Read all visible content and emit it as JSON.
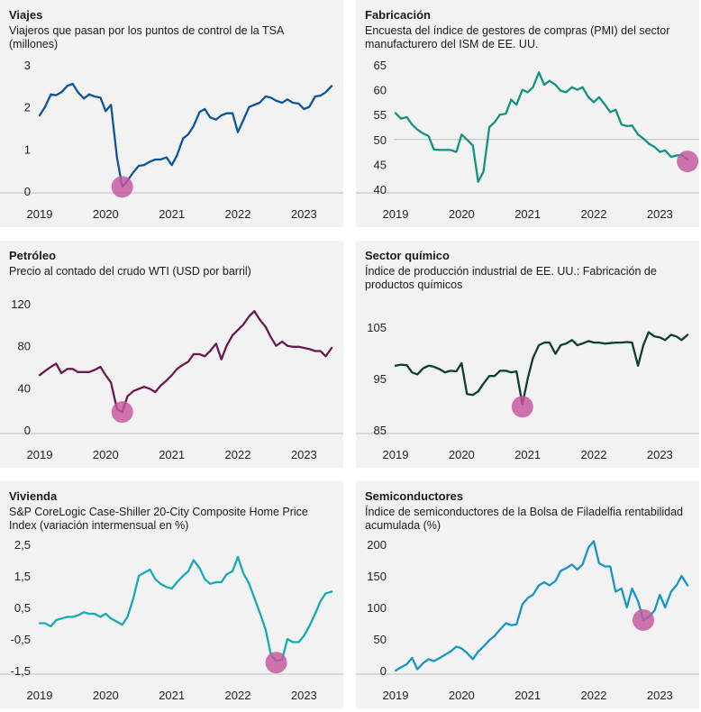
{
  "chart_data": [
    {
      "type": "line",
      "title": "Viajes",
      "subtitle": "Viajeros que pasan por los puntos de control de la TSA (millones)",
      "color": "#0e5596",
      "ylim": [
        0,
        3
      ],
      "yticks": [
        "0",
        "1",
        "2",
        "3"
      ],
      "ytick_values": [
        0,
        1,
        2,
        3
      ],
      "xlim": [
        2019.0,
        2023.5
      ],
      "xticks": [
        "2019",
        "2020",
        "2021",
        "2022",
        "2023"
      ],
      "x": [
        2019.0,
        2019.08,
        2019.17,
        2019.25,
        2019.33,
        2019.42,
        2019.5,
        2019.58,
        2019.67,
        2019.75,
        2019.83,
        2019.92,
        2020.0,
        2020.08,
        2020.17,
        2020.25,
        2020.33,
        2020.42,
        2020.5,
        2020.58,
        2020.67,
        2020.75,
        2020.83,
        2020.92,
        2021.0,
        2021.08,
        2021.17,
        2021.25,
        2021.33,
        2021.42,
        2021.5,
        2021.58,
        2021.67,
        2021.75,
        2021.83,
        2021.92,
        2022.0,
        2022.08,
        2022.17,
        2022.25,
        2022.33,
        2022.42,
        2022.5,
        2022.58,
        2022.67,
        2022.75,
        2022.83,
        2022.92,
        2023.0,
        2023.08,
        2023.17,
        2023.25,
        2023.33,
        2023.42
      ],
      "values": [
        1.8,
        2.0,
        2.3,
        2.28,
        2.35,
        2.5,
        2.55,
        2.35,
        2.2,
        2.3,
        2.25,
        2.22,
        1.9,
        2.05,
        0.8,
        0.1,
        0.25,
        0.45,
        0.6,
        0.62,
        0.7,
        0.75,
        0.75,
        0.8,
        0.62,
        0.85,
        1.25,
        1.35,
        1.55,
        1.88,
        1.95,
        1.75,
        1.7,
        1.8,
        1.85,
        1.85,
        1.4,
        1.68,
        2.0,
        2.05,
        2.1,
        2.25,
        2.22,
        2.15,
        2.1,
        2.18,
        2.1,
        2.08,
        1.95,
        2.0,
        2.25,
        2.27,
        2.35,
        2.5
      ],
      "highlight": {
        "x": 2020.25,
        "y": 0.1
      },
      "grid": false
    },
    {
      "type": "line",
      "title": "Fabricación",
      "subtitle": "Encuesta del índice de gestores de compras (PMI) del sector manufacturero del ISM de EE. UU.",
      "color": "#13937f",
      "ylim": [
        40,
        65
      ],
      "yticks": [
        "40",
        "45",
        "50",
        "55",
        "60",
        "65"
      ],
      "ytick_values": [
        40,
        45,
        50,
        55,
        60,
        65
      ],
      "reference_line": 50,
      "xlim": [
        2019.0,
        2023.5
      ],
      "xticks": [
        "2019",
        "2020",
        "2021",
        "2022",
        "2023"
      ],
      "x": [
        2019.0,
        2019.08,
        2019.17,
        2019.25,
        2019.33,
        2019.42,
        2019.5,
        2019.58,
        2019.67,
        2019.75,
        2019.83,
        2019.92,
        2020.0,
        2020.08,
        2020.17,
        2020.25,
        2020.33,
        2020.42,
        2020.5,
        2020.58,
        2020.67,
        2020.75,
        2020.83,
        2020.92,
        2021.0,
        2021.08,
        2021.17,
        2021.25,
        2021.33,
        2021.42,
        2021.5,
        2021.58,
        2021.67,
        2021.75,
        2021.83,
        2021.92,
        2022.0,
        2022.08,
        2022.17,
        2022.25,
        2022.33,
        2022.42,
        2022.5,
        2022.58,
        2022.67,
        2022.75,
        2022.83,
        2022.92,
        2023.0,
        2023.08,
        2023.17,
        2023.25,
        2023.33,
        2023.42
      ],
      "values": [
        55.3,
        54.2,
        54.5,
        53.0,
        52.0,
        51.2,
        50.7,
        48.0,
        47.9,
        47.9,
        47.9,
        47.5,
        51.0,
        50.0,
        48.8,
        41.5,
        43.5,
        52.5,
        53.5,
        55.0,
        55.2,
        58.0,
        57.0,
        60.0,
        59.5,
        60.5,
        63.5,
        61.0,
        61.8,
        61.0,
        59.8,
        59.5,
        60.5,
        60.0,
        60.5,
        58.5,
        57.5,
        58.5,
        57.0,
        55.5,
        56.0,
        53.0,
        52.7,
        52.8,
        51.0,
        50.2,
        49.2,
        48.5,
        47.5,
        47.8,
        46.5,
        46.8,
        46.9,
        46.0
      ],
      "highlight": {
        "x": 2023.42,
        "y": 45.6
      },
      "grid": false
    },
    {
      "type": "line",
      "title": "Petróleo",
      "subtitle": "Precio al contado del crudo WTI (USD por barril)",
      "color": "#6a1b4d",
      "ylim": [
        0,
        120
      ],
      "yticks": [
        "0",
        "40",
        "80",
        "120"
      ],
      "ytick_values": [
        0,
        40,
        80,
        120
      ],
      "xlim": [
        2019.0,
        2023.5
      ],
      "xticks": [
        "2019",
        "2020",
        "2021",
        "2022",
        "2023"
      ],
      "x": [
        2019.0,
        2019.08,
        2019.17,
        2019.25,
        2019.33,
        2019.42,
        2019.5,
        2019.58,
        2019.67,
        2019.75,
        2019.83,
        2019.92,
        2020.0,
        2020.08,
        2020.17,
        2020.25,
        2020.33,
        2020.42,
        2020.5,
        2020.58,
        2020.67,
        2020.75,
        2020.83,
        2020.92,
        2021.0,
        2021.08,
        2021.17,
        2021.25,
        2021.33,
        2021.42,
        2021.5,
        2021.58,
        2021.67,
        2021.75,
        2021.83,
        2021.92,
        2022.0,
        2022.08,
        2022.17,
        2022.25,
        2022.33,
        2022.42,
        2022.5,
        2022.58,
        2022.67,
        2022.75,
        2022.83,
        2022.92,
        2023.0,
        2023.08,
        2023.17,
        2023.25,
        2023.33,
        2023.42
      ],
      "values": [
        52,
        56,
        60,
        63,
        54,
        58,
        58,
        55,
        55,
        55,
        57,
        60,
        52,
        45,
        20,
        17,
        32,
        37,
        39,
        41,
        39,
        36,
        42,
        47,
        52,
        58,
        62,
        65,
        72,
        72,
        70,
        75,
        82,
        67,
        80,
        90,
        95,
        100,
        108,
        113,
        105,
        98,
        88,
        80,
        84,
        80,
        79,
        79,
        78,
        77,
        75,
        75,
        70,
        78
      ],
      "highlight": {
        "x": 2020.25,
        "y": 17
      },
      "grid": false
    },
    {
      "type": "line",
      "title": "Sector químico",
      "subtitle": "Índice de producción industrial de EE. UU.: Fabricación de productos químicos",
      "color": "#0d3d36",
      "ylim": [
        85,
        105
      ],
      "yticks": [
        "85",
        "95",
        "105"
      ],
      "ytick_values": [
        85,
        95,
        105
      ],
      "xlim": [
        2019.0,
        2023.5
      ],
      "xticks": [
        "2019",
        "2020",
        "2021",
        "2022",
        "2023"
      ],
      "x": [
        2019.0,
        2019.08,
        2019.17,
        2019.25,
        2019.33,
        2019.42,
        2019.5,
        2019.58,
        2019.67,
        2019.75,
        2019.83,
        2019.92,
        2020.0,
        2020.08,
        2020.17,
        2020.25,
        2020.33,
        2020.42,
        2020.5,
        2020.58,
        2020.67,
        2020.75,
        2020.83,
        2020.92,
        2021.0,
        2021.08,
        2021.17,
        2021.25,
        2021.33,
        2021.42,
        2021.5,
        2021.58,
        2021.67,
        2021.75,
        2021.83,
        2021.92,
        2022.0,
        2022.08,
        2022.17,
        2022.25,
        2022.33,
        2022.42,
        2022.5,
        2022.58,
        2022.67,
        2022.75,
        2022.83,
        2022.92,
        2023.0,
        2023.08,
        2023.17,
        2023.25,
        2023.33,
        2023.42
      ],
      "values": [
        97.5,
        97.7,
        97.6,
        96.2,
        95.8,
        97.0,
        97.5,
        97.3,
        96.8,
        96.2,
        96.5,
        96.4,
        98.0,
        92.0,
        91.8,
        92.5,
        94.0,
        95.5,
        95.5,
        96.5,
        96.5,
        96.2,
        96.4,
        90.0,
        95.0,
        99.0,
        101.5,
        102.0,
        102.0,
        99.8,
        101.5,
        101.8,
        102.5,
        101.5,
        101.8,
        102.3,
        102.0,
        102.0,
        101.8,
        101.9,
        102.0,
        102.0,
        102.1,
        102.0,
        97.5,
        101.5,
        104.0,
        103.2,
        103.0,
        102.5,
        103.5,
        103.2,
        102.5,
        103.5
      ],
      "highlight": {
        "x": 2020.92,
        "y": 89.5
      },
      "grid": false
    },
    {
      "type": "line",
      "title": "Vivienda",
      "subtitle": "S&P CoreLogic Case-Shiller 20-City Composite Home Price Index (variación intermensual en %)",
      "color": "#18aab0",
      "ylim": [
        -1.5,
        2.5
      ],
      "yticks": [
        "-1,5",
        "-0,5",
        "0,5",
        "1,5",
        "2,5"
      ],
      "ytick_values": [
        -1.5,
        -0.5,
        0.5,
        1.5,
        2.5
      ],
      "xlim": [
        2019.0,
        2023.5
      ],
      "xticks": [
        "2019",
        "2020",
        "2021",
        "2022",
        "2023"
      ],
      "x": [
        2019.0,
        2019.08,
        2019.17,
        2019.25,
        2019.33,
        2019.42,
        2019.5,
        2019.58,
        2019.67,
        2019.75,
        2019.83,
        2019.92,
        2020.0,
        2020.08,
        2020.17,
        2020.25,
        2020.33,
        2020.42,
        2020.5,
        2020.58,
        2020.67,
        2020.75,
        2020.83,
        2020.92,
        2021.0,
        2021.08,
        2021.17,
        2021.25,
        2021.33,
        2021.42,
        2021.5,
        2021.58,
        2021.67,
        2021.75,
        2021.83,
        2021.92,
        2022.0,
        2022.08,
        2022.17,
        2022.25,
        2022.33,
        2022.42,
        2022.5,
        2022.58,
        2022.67,
        2022.75,
        2022.83,
        2022.92,
        2023.0,
        2023.08,
        2023.17,
        2023.25,
        2023.33,
        2023.42
      ],
      "values": [
        0.0,
        0.0,
        -0.1,
        0.1,
        0.15,
        0.2,
        0.2,
        0.25,
        0.35,
        0.3,
        0.3,
        0.2,
        0.3,
        0.15,
        0.05,
        -0.05,
        0.2,
        0.8,
        1.5,
        1.6,
        1.7,
        1.4,
        1.25,
        1.15,
        1.1,
        1.3,
        1.5,
        1.65,
        2.0,
        1.75,
        1.4,
        1.25,
        1.3,
        1.3,
        1.55,
        1.65,
        2.1,
        1.6,
        1.25,
        0.8,
        0.35,
        -0.2,
        -1.0,
        -1.2,
        -1.15,
        -0.5,
        -0.6,
        -0.6,
        -0.4,
        -0.1,
        0.3,
        0.7,
        0.95,
        1.0
      ],
      "highlight": {
        "x": 2022.58,
        "y": -1.25
      },
      "grid": false
    },
    {
      "type": "line",
      "title": "Semiconductores",
      "subtitle": "Índice de semiconductores de la Bolsa de Filadelfia rentabilidad acumulada (%)",
      "color": "#1795c8",
      "ylim": [
        0,
        200
      ],
      "yticks": [
        "0",
        "50",
        "100",
        "150",
        "200"
      ],
      "ytick_values": [
        0,
        50,
        100,
        150,
        200
      ],
      "xlim": [
        2019.0,
        2023.5
      ],
      "xticks": [
        "2019",
        "2020",
        "2021",
        "2022",
        "2023"
      ],
      "x": [
        2019.0,
        2019.08,
        2019.17,
        2019.25,
        2019.33,
        2019.42,
        2019.5,
        2019.58,
        2019.67,
        2019.75,
        2019.83,
        2019.92,
        2020.0,
        2020.08,
        2020.17,
        2020.25,
        2020.33,
        2020.42,
        2020.5,
        2020.58,
        2020.67,
        2020.75,
        2020.83,
        2020.92,
        2021.0,
        2021.08,
        2021.17,
        2021.25,
        2021.33,
        2021.42,
        2021.5,
        2021.58,
        2021.67,
        2021.75,
        2021.83,
        2021.92,
        2022.0,
        2022.08,
        2022.17,
        2022.25,
        2022.33,
        2022.42,
        2022.5,
        2022.58,
        2022.67,
        2022.75,
        2022.83,
        2022.92,
        2023.0,
        2023.08,
        2023.17,
        2023.25,
        2023.33,
        2023.42
      ],
      "values": [
        0,
        5,
        10,
        20,
        2,
        12,
        18,
        15,
        20,
        25,
        30,
        38,
        35,
        28,
        18,
        30,
        38,
        48,
        55,
        65,
        75,
        72,
        73,
        105,
        115,
        120,
        135,
        140,
        135,
        142,
        158,
        162,
        168,
        160,
        168,
        195,
        205,
        170,
        165,
        165,
        125,
        130,
        100,
        130,
        110,
        80,
        85,
        95,
        120,
        100,
        125,
        135,
        150,
        135
      ],
      "highlight": {
        "x": 2022.75,
        "y": 80
      },
      "grid": false
    }
  ]
}
